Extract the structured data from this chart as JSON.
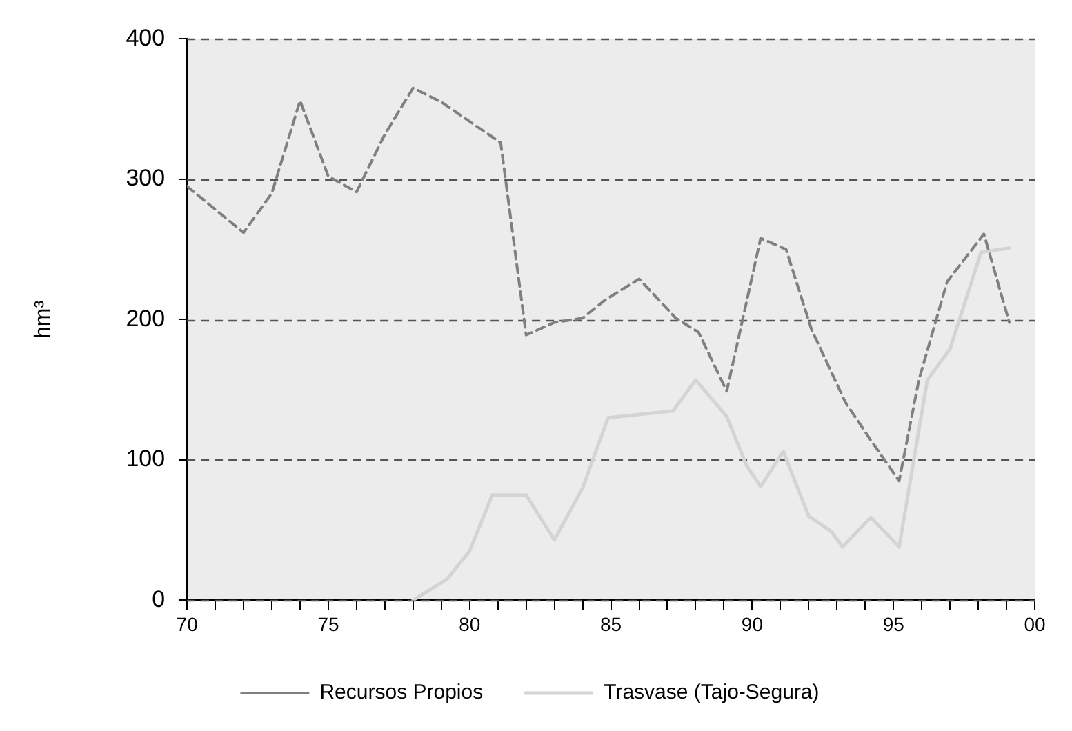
{
  "chart_data": {
    "type": "line",
    "ylabel": "hm³",
    "xlim": [
      1970,
      2000
    ],
    "ylim": [
      0,
      400
    ],
    "xticks": [
      {
        "value": 1970,
        "label": "70"
      },
      {
        "value": 1971,
        "label": null
      },
      {
        "value": 1972,
        "label": null
      },
      {
        "value": 1973,
        "label": null
      },
      {
        "value": 1974,
        "label": null
      },
      {
        "value": 1975,
        "label": "75"
      },
      {
        "value": 1976,
        "label": null
      },
      {
        "value": 1977,
        "label": null
      },
      {
        "value": 1978,
        "label": null
      },
      {
        "value": 1979,
        "label": null
      },
      {
        "value": 1980,
        "label": "80"
      },
      {
        "value": 1981,
        "label": null
      },
      {
        "value": 1982,
        "label": null
      },
      {
        "value": 1983,
        "label": null
      },
      {
        "value": 1984,
        "label": null
      },
      {
        "value": 1985,
        "label": "85"
      },
      {
        "value": 1986,
        "label": null
      },
      {
        "value": 1987,
        "label": null
      },
      {
        "value": 1988,
        "label": null
      },
      {
        "value": 1989,
        "label": null
      },
      {
        "value": 1990,
        "label": "90"
      },
      {
        "value": 1991,
        "label": null
      },
      {
        "value": 1992,
        "label": null
      },
      {
        "value": 1993,
        "label": null
      },
      {
        "value": 1994,
        "label": null
      },
      {
        "value": 1995,
        "label": "95"
      },
      {
        "value": 1996,
        "label": null
      },
      {
        "value": 1997,
        "label": null
      },
      {
        "value": 1998,
        "label": null
      },
      {
        "value": 1999,
        "label": null
      },
      {
        "value": 2000,
        "label": "00"
      }
    ],
    "yticks": [
      0,
      100,
      200,
      300,
      400
    ],
    "grid": "y",
    "legend": "bottom",
    "marker": "none",
    "series": [
      {
        "name": "Recursos Propios",
        "color": "#808080",
        "line_style": "dashed",
        "x": [
          1970,
          1972,
          1973,
          1974,
          1975,
          1976,
          1977,
          1978,
          1979,
          1981.1,
          1982,
          1983,
          1984,
          1984.8,
          1986,
          1987.3,
          1988.1,
          1989.1,
          1990.3,
          1991.2,
          1992.1,
          1993.3,
          1994.2,
          1995.2,
          1995.9,
          1996.9,
          1998.2,
          1999.1
        ],
        "values": [
          295,
          262,
          290,
          356,
          302,
          291,
          332,
          365,
          355,
          326,
          189,
          198,
          201,
          214,
          229,
          201,
          191,
          149,
          258,
          250,
          193,
          141,
          114,
          85,
          157,
          227,
          261,
          198
        ]
      },
      {
        "name": "Trasvase (Tajo-Segura)",
        "color": "#d4d4d4",
        "line_style": "solid",
        "x": [
          1978,
          1979.2,
          1980,
          1980.8,
          1982,
          1983,
          1984,
          1984.9,
          1987.2,
          1988,
          1989.1,
          1989.8,
          1990.3,
          1991.1,
          1992,
          1992.8,
          1993.2,
          1994.2,
          1995.2,
          1996.2,
          1997,
          1998.1,
          1999.1
        ],
        "values": [
          0,
          15,
          35,
          75,
          75,
          43,
          80,
          130,
          135,
          157,
          131,
          96,
          81,
          106,
          60,
          49,
          38,
          59,
          38,
          157,
          179,
          248,
          251
        ]
      }
    ]
  }
}
